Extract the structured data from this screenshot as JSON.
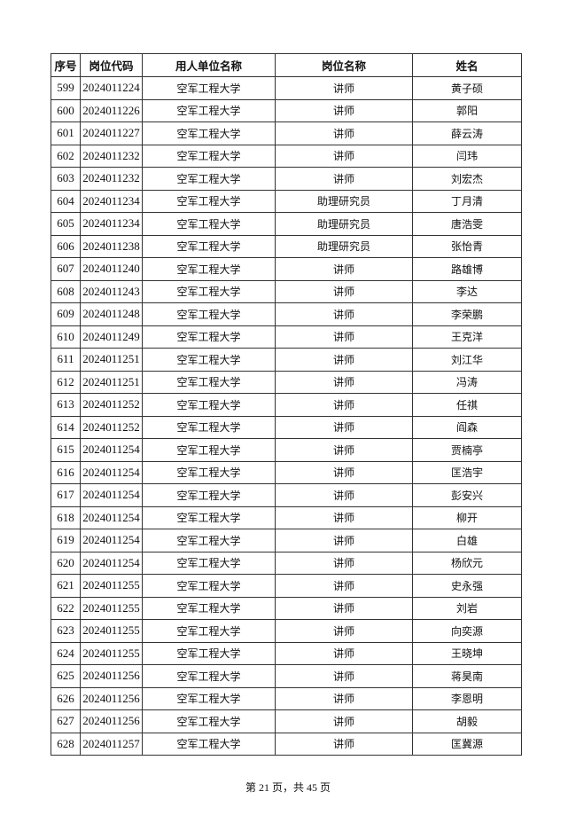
{
  "table": {
    "headers": [
      "序号",
      "岗位代码",
      "用人单位名称",
      "岗位名称",
      "姓名"
    ],
    "rows": [
      [
        "599",
        "2024011224",
        "空军工程大学",
        "讲师",
        "黄子硕"
      ],
      [
        "600",
        "2024011226",
        "空军工程大学",
        "讲师",
        "郭阳"
      ],
      [
        "601",
        "2024011227",
        "空军工程大学",
        "讲师",
        "薛云涛"
      ],
      [
        "602",
        "2024011232",
        "空军工程大学",
        "讲师",
        "闫玮"
      ],
      [
        "603",
        "2024011232",
        "空军工程大学",
        "讲师",
        "刘宏杰"
      ],
      [
        "604",
        "2024011234",
        "空军工程大学",
        "助理研究员",
        "丁月清"
      ],
      [
        "605",
        "2024011234",
        "空军工程大学",
        "助理研究员",
        "唐浩雯"
      ],
      [
        "606",
        "2024011238",
        "空军工程大学",
        "助理研究员",
        "张怡青"
      ],
      [
        "607",
        "2024011240",
        "空军工程大学",
        "讲师",
        "路雄博"
      ],
      [
        "608",
        "2024011243",
        "空军工程大学",
        "讲师",
        "李达"
      ],
      [
        "609",
        "2024011248",
        "空军工程大学",
        "讲师",
        "李荣鹏"
      ],
      [
        "610",
        "2024011249",
        "空军工程大学",
        "讲师",
        "王克洋"
      ],
      [
        "611",
        "2024011251",
        "空军工程大学",
        "讲师",
        "刘江华"
      ],
      [
        "612",
        "2024011251",
        "空军工程大学",
        "讲师",
        "冯涛"
      ],
      [
        "613",
        "2024011252",
        "空军工程大学",
        "讲师",
        "任祺"
      ],
      [
        "614",
        "2024011252",
        "空军工程大学",
        "讲师",
        "阎森"
      ],
      [
        "615",
        "2024011254",
        "空军工程大学",
        "讲师",
        "贾楠亭"
      ],
      [
        "616",
        "2024011254",
        "空军工程大学",
        "讲师",
        "匡浩宇"
      ],
      [
        "617",
        "2024011254",
        "空军工程大学",
        "讲师",
        "彭安兴"
      ],
      [
        "618",
        "2024011254",
        "空军工程大学",
        "讲师",
        "柳开"
      ],
      [
        "619",
        "2024011254",
        "空军工程大学",
        "讲师",
        "白雄"
      ],
      [
        "620",
        "2024011254",
        "空军工程大学",
        "讲师",
        "杨欣元"
      ],
      [
        "621",
        "2024011255",
        "空军工程大学",
        "讲师",
        "史永强"
      ],
      [
        "622",
        "2024011255",
        "空军工程大学",
        "讲师",
        "刘岩"
      ],
      [
        "623",
        "2024011255",
        "空军工程大学",
        "讲师",
        "向奕源"
      ],
      [
        "624",
        "2024011255",
        "空军工程大学",
        "讲师",
        "王晓坤"
      ],
      [
        "625",
        "2024011256",
        "空军工程大学",
        "讲师",
        "蒋昊南"
      ],
      [
        "626",
        "2024011256",
        "空军工程大学",
        "讲师",
        "李恩明"
      ],
      [
        "627",
        "2024011256",
        "空军工程大学",
        "讲师",
        "胡毅"
      ],
      [
        "628",
        "2024011257",
        "空军工程大学",
        "讲师",
        "匡冀源"
      ]
    ]
  },
  "footer": "第 21 页，共 45 页"
}
